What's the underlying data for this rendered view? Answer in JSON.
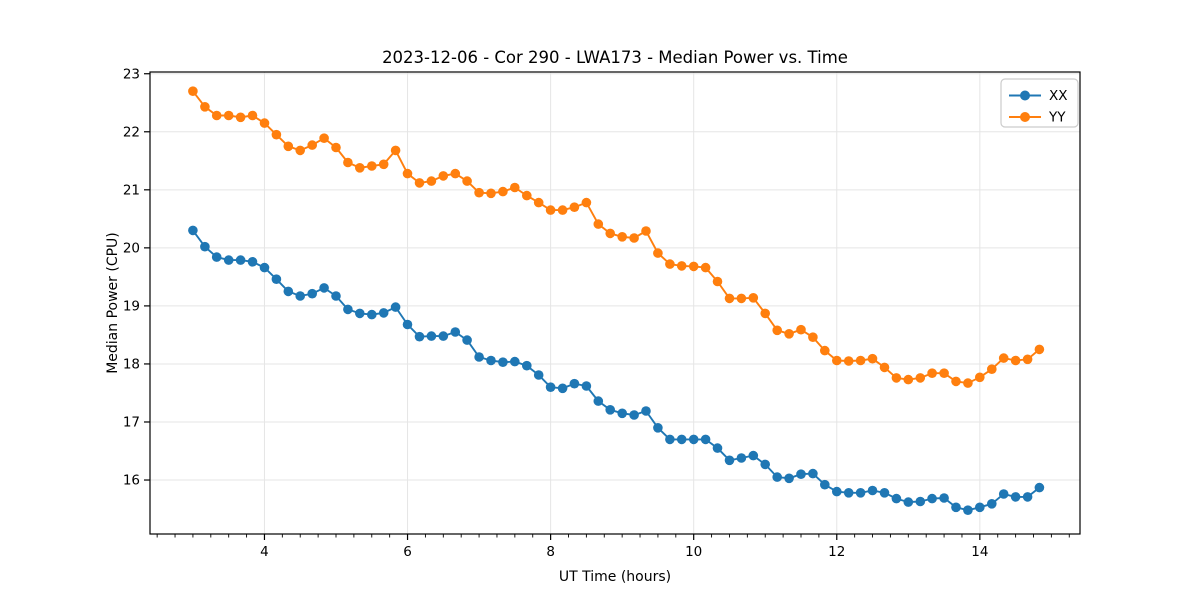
{
  "figure": {
    "background": "#ffffff",
    "spine_color": "#000000",
    "grid_color": "#e5e5e5",
    "tick_color": "#000000"
  },
  "legend": {
    "entries": [
      {
        "label": "XX",
        "color": "#1f77b4"
      },
      {
        "label": "YY",
        "color": "#ff7f0e"
      }
    ],
    "position": "upper right",
    "border_color": "#cccccc",
    "background": "#ffffff"
  },
  "chart_data": {
    "type": "line",
    "title": "2023-12-06 - Cor 290 - LWA173 - Median Power vs. Time",
    "xlabel": "UT Time (hours)",
    "ylabel": "Median Power (CPU)",
    "xlim": [
      2.4,
      15.4
    ],
    "ylim": [
      15.07,
      23.03
    ],
    "x_major_ticks": [
      4,
      6,
      8,
      10,
      12,
      14
    ],
    "x_minor_step": 0.25,
    "y_major_ticks": [
      16,
      17,
      18,
      19,
      20,
      21,
      22,
      23
    ],
    "grid": "major-both",
    "legend_position": "upper right",
    "marker": "circle",
    "x": [
      3.0,
      3.167,
      3.333,
      3.5,
      3.667,
      3.833,
      4.0,
      4.167,
      4.333,
      4.5,
      4.667,
      4.833,
      5.0,
      5.167,
      5.333,
      5.5,
      5.667,
      5.833,
      6.0,
      6.167,
      6.333,
      6.5,
      6.667,
      6.833,
      7.0,
      7.167,
      7.333,
      7.5,
      7.667,
      7.833,
      8.0,
      8.167,
      8.333,
      8.5,
      8.667,
      8.833,
      9.0,
      9.167,
      9.333,
      9.5,
      9.667,
      9.833,
      10.0,
      10.167,
      10.333,
      10.5,
      10.667,
      10.833,
      11.0,
      11.167,
      11.333,
      11.5,
      11.667,
      11.833,
      12.0,
      12.167,
      12.333,
      12.5,
      12.667,
      12.833,
      13.0,
      13.167,
      13.333,
      13.5,
      13.667,
      13.833,
      14.0,
      14.167,
      14.333,
      14.5,
      14.667,
      14.833
    ],
    "series": [
      {
        "name": "XX",
        "color": "#1f77b4",
        "values": [
          20.3,
          20.02,
          19.84,
          19.79,
          19.79,
          19.76,
          19.66,
          19.46,
          19.25,
          19.17,
          19.21,
          19.31,
          19.17,
          18.94,
          18.87,
          18.85,
          18.88,
          18.98,
          18.68,
          18.47,
          18.48,
          18.48,
          18.55,
          18.41,
          18.12,
          18.06,
          18.03,
          18.04,
          17.97,
          17.81,
          17.6,
          17.58,
          17.66,
          17.62,
          17.36,
          17.21,
          17.15,
          17.12,
          17.19,
          16.9,
          16.7,
          16.7,
          16.7,
          16.7,
          16.55,
          16.34,
          16.38,
          16.42,
          16.27,
          16.05,
          16.03,
          16.1,
          16.11,
          15.92,
          15.8,
          15.78,
          15.78,
          15.82,
          15.78,
          15.68,
          15.62,
          15.63,
          15.68,
          15.69,
          15.53,
          15.48,
          15.53,
          15.59,
          15.76,
          15.71,
          15.71,
          15.87
        ]
      },
      {
        "name": "YY",
        "color": "#ff7f0e",
        "values": [
          22.7,
          22.43,
          22.28,
          22.28,
          22.25,
          22.28,
          22.15,
          21.95,
          21.75,
          21.68,
          21.77,
          21.89,
          21.73,
          21.47,
          21.38,
          21.41,
          21.44,
          21.68,
          21.28,
          21.12,
          21.15,
          21.24,
          21.28,
          21.15,
          20.95,
          20.94,
          20.97,
          21.04,
          20.9,
          20.78,
          20.65,
          20.65,
          20.7,
          20.78,
          20.41,
          20.25,
          20.19,
          20.17,
          20.29,
          19.91,
          19.72,
          19.69,
          19.68,
          19.66,
          19.42,
          19.13,
          19.13,
          19.14,
          18.87,
          18.58,
          18.52,
          18.59,
          18.46,
          18.23,
          18.06,
          18.05,
          18.06,
          18.09,
          17.94,
          17.76,
          17.73,
          17.76,
          17.84,
          17.84,
          17.7,
          17.67,
          17.77,
          17.91,
          18.1,
          18.06,
          18.08,
          18.25
        ]
      }
    ]
  }
}
